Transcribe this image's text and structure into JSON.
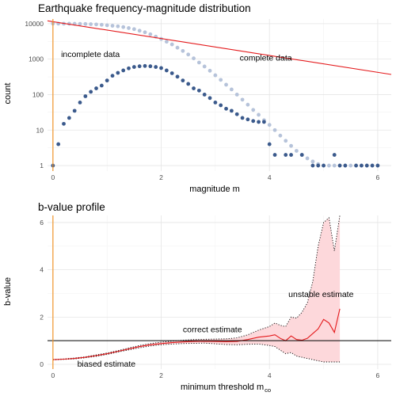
{
  "colors": {
    "observed": "#3b5a8c",
    "cumulative": "#b6c3da",
    "fit_line": "#e41a1c",
    "threshold": "#f0952b",
    "ribbon": "#fdd8db",
    "reference": "#000000"
  },
  "chart_data": [
    {
      "type": "scatter",
      "title": "Earthquake frequency-magnitude distribution",
      "xlabel": "magnitude m",
      "ylabel": "count",
      "y_scale": "log10",
      "xlim": [
        -0.1,
        6.25
      ],
      "ylim": [
        0.7,
        13500
      ],
      "x_ticks": [
        0,
        2,
        4,
        6
      ],
      "x_tick_labels": [
        "0",
        "2",
        "4",
        "6"
      ],
      "y_ticks": [
        1,
        10,
        100,
        1000,
        10000
      ],
      "y_tick_labels": [
        "1",
        "10",
        "100",
        "1000",
        "10000"
      ],
      "grid": true,
      "vline_x": 0,
      "series": [
        {
          "role": "cumulative",
          "x": [
            0,
            0.1,
            0.2,
            0.3,
            0.4,
            0.5,
            0.6,
            0.7,
            0.8,
            0.9,
            1.0,
            1.1,
            1.2,
            1.3,
            1.4,
            1.5,
            1.6,
            1.7,
            1.8,
            1.9,
            2.0,
            2.1,
            2.2,
            2.3,
            2.4,
            2.5,
            2.6,
            2.7,
            2.8,
            2.9,
            3.0,
            3.1,
            3.2,
            3.3,
            3.4,
            3.5,
            3.6,
            3.7,
            3.8,
            3.9,
            4.0,
            4.1,
            4.2,
            4.3,
            4.4,
            4.5,
            4.6,
            4.7,
            4.8,
            4.9,
            5.0,
            5.1,
            5.2,
            5.3,
            5.4,
            5.5,
            5.6,
            5.7,
            5.8,
            5.9,
            6.0
          ],
          "values": [
            10000,
            10000,
            9980,
            9960,
            9900,
            9850,
            9750,
            9650,
            9500,
            9300,
            9000,
            8700,
            8400,
            8000,
            7500,
            7000,
            6300,
            5700,
            5000,
            4300,
            3700,
            3100,
            2600,
            2100,
            1700,
            1350,
            1050,
            800,
            620,
            470,
            350,
            260,
            190,
            140,
            100,
            72,
            52,
            37,
            27,
            19,
            14,
            10,
            7,
            5,
            3.6,
            2.6,
            2,
            1.6,
            1.3,
            1.1,
            1,
            1,
            1,
            1,
            1,
            1,
            1,
            1,
            1,
            1,
            1
          ]
        },
        {
          "role": "observed",
          "x": [
            0,
            0.1,
            0.2,
            0.3,
            0.4,
            0.5,
            0.6,
            0.7,
            0.8,
            0.9,
            1.0,
            1.1,
            1.2,
            1.3,
            1.4,
            1.5,
            1.6,
            1.7,
            1.8,
            1.9,
            2.0,
            2.1,
            2.2,
            2.3,
            2.4,
            2.5,
            2.6,
            2.7,
            2.8,
            2.9,
            3.0,
            3.1,
            3.2,
            3.3,
            3.4,
            3.5,
            3.6,
            3.7,
            3.8,
            3.9,
            4.0,
            4.1,
            4.3,
            4.4,
            4.6,
            4.8,
            4.9,
            5.0,
            5.2,
            5.3,
            5.4,
            5.6,
            5.7,
            5.8,
            5.9,
            6.0
          ],
          "values": [
            1,
            4,
            15,
            22,
            35,
            60,
            90,
            120,
            150,
            180,
            250,
            340,
            410,
            480,
            550,
            600,
            630,
            640,
            630,
            600,
            560,
            480,
            400,
            320,
            250,
            200,
            150,
            130,
            100,
            80,
            60,
            50,
            40,
            35,
            28,
            22,
            20,
            18,
            17,
            17,
            4,
            2,
            2,
            2,
            2,
            1,
            1,
            1,
            2,
            1,
            1,
            1,
            1,
            1,
            1,
            1
          ]
        },
        {
          "role": "fit",
          "type": "line",
          "x": [
            -0.1,
            6.25
          ],
          "values": [
            12000,
            370
          ]
        }
      ],
      "annotations": [
        {
          "text": "incomplete data",
          "x": 0.15,
          "y": 1150
        },
        {
          "text": "complete data",
          "x": 3.45,
          "y": 900
        }
      ]
    },
    {
      "type": "line",
      "title": "b-value profile",
      "xlabel": "minimum threshold m",
      "xlabel_sub": "co",
      "ylabel": "b-value",
      "xlim": [
        -0.1,
        6.25
      ],
      "ylim": [
        -0.2,
        6.3
      ],
      "x_ticks": [
        0,
        2,
        4,
        6
      ],
      "x_tick_labels": [
        "0",
        "2",
        "4",
        "6"
      ],
      "y_ticks": [
        0,
        2,
        4,
        6
      ],
      "y_tick_labels": [
        "0",
        "2",
        "4",
        "6"
      ],
      "grid": true,
      "vline_x": 0,
      "hline_y": 1,
      "series": [
        {
          "role": "estimate",
          "x": [
            0,
            0.2,
            0.4,
            0.6,
            0.8,
            1.0,
            1.2,
            1.4,
            1.6,
            1.8,
            2.0,
            2.2,
            2.4,
            2.6,
            2.8,
            3.0,
            3.2,
            3.4,
            3.6,
            3.8,
            4.0,
            4.1,
            4.2,
            4.3,
            4.4,
            4.5,
            4.6,
            4.7,
            4.8,
            4.9,
            5.0,
            5.1,
            5.2,
            5.3
          ],
          "values": [
            0.2,
            0.22,
            0.25,
            0.3,
            0.37,
            0.45,
            0.55,
            0.65,
            0.75,
            0.83,
            0.88,
            0.92,
            0.95,
            0.97,
            0.98,
            0.97,
            0.96,
            0.97,
            1.05,
            1.15,
            1.2,
            1.25,
            1.1,
            1.0,
            1.2,
            1.05,
            1.02,
            1.1,
            1.3,
            1.5,
            1.9,
            1.75,
            1.35,
            2.35
          ]
        },
        {
          "role": "ci_upper",
          "x": [
            0,
            0.2,
            0.4,
            0.6,
            0.8,
            1.0,
            1.2,
            1.4,
            1.6,
            1.8,
            2.0,
            2.2,
            2.4,
            2.6,
            2.8,
            3.0,
            3.2,
            3.4,
            3.6,
            3.8,
            4.0,
            4.1,
            4.2,
            4.3,
            4.4,
            4.5,
            4.6,
            4.7,
            4.8,
            4.9,
            5.0,
            5.1,
            5.2,
            5.3
          ],
          "values": [
            0.21,
            0.23,
            0.27,
            0.32,
            0.4,
            0.48,
            0.58,
            0.69,
            0.8,
            0.88,
            0.94,
            0.98,
            1.02,
            1.05,
            1.06,
            1.07,
            1.08,
            1.12,
            1.25,
            1.45,
            1.6,
            1.75,
            1.65,
            1.6,
            2.0,
            1.95,
            2.2,
            2.6,
            3.5,
            5.0,
            6.0,
            6.2,
            4.8,
            6.3
          ]
        },
        {
          "role": "ci_lower",
          "x": [
            0,
            0.2,
            0.4,
            0.6,
            0.8,
            1.0,
            1.2,
            1.4,
            1.6,
            1.8,
            2.0,
            2.2,
            2.4,
            2.6,
            2.8,
            3.0,
            3.2,
            3.4,
            3.6,
            3.8,
            4.0,
            4.1,
            4.2,
            4.3,
            4.4,
            4.5,
            4.6,
            4.7,
            4.8,
            4.9,
            5.0,
            5.1,
            5.2,
            5.3
          ],
          "values": [
            0.19,
            0.21,
            0.23,
            0.28,
            0.34,
            0.42,
            0.52,
            0.61,
            0.7,
            0.78,
            0.83,
            0.86,
            0.88,
            0.89,
            0.9,
            0.87,
            0.84,
            0.83,
            0.85,
            0.86,
            0.8,
            0.75,
            0.6,
            0.45,
            0.5,
            0.35,
            0.3,
            0.25,
            0.2,
            0.15,
            0.1,
            0.1,
            0.1,
            0.1
          ]
        }
      ],
      "annotations": [
        {
          "text": "unstable estimate",
          "x": 4.35,
          "y": 2.85
        },
        {
          "text": "correct estimate",
          "x": 2.4,
          "y": 1.35
        },
        {
          "text": "biased estimate",
          "x": 0.45,
          "y": -0.1
        }
      ]
    }
  ]
}
